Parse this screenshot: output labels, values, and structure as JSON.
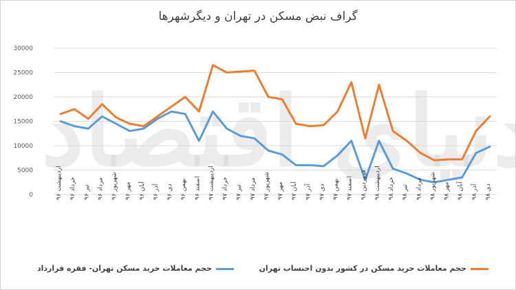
{
  "colors": {
    "orange": "#ED7D31",
    "blue": "#5B9BD5",
    "grid": "#d9d9d9",
    "text": "#595959"
  },
  "chart_data": {
    "type": "line",
    "title": "گراف نبض مسکن در تهران و دیگرشهرها",
    "ylim": [
      0,
      30000
    ],
    "yticks": [
      {
        "value": 0,
        "label": "0"
      },
      {
        "value": 5000,
        "label": "5000"
      },
      {
        "value": 10000,
        "label": "10000"
      },
      {
        "value": 15000,
        "label": "15000"
      },
      {
        "value": 20000,
        "label": "20000"
      },
      {
        "value": 25000,
        "label": "25000"
      },
      {
        "value": 30000,
        "label": "30000"
      }
    ],
    "grid": true,
    "legend_position": "bottom",
    "categories": [
      "اردیبهشت ۹۶",
      "خرداد ۹۶",
      "تیر ۹۶",
      "مرداد ۹۶",
      "شهریور ۹۶",
      "مهر ۹۶",
      "آبان ۹۶",
      "آذر ۹۶",
      "دی ۹۶",
      "بهمن ۹۶",
      "اسفند ۹۶",
      "اردیبهشت ۹۷",
      "خرداد ۹۷",
      "تیر ۹۷",
      "مرداد ۹۷",
      "شهریور ۹۷",
      "مهر ۹۷",
      "آبان ۹۷",
      "آذر ۹۷",
      "دی ۹۷",
      "بهمن ۹۷",
      "اسفند ۹۷",
      "فروردین ۹۸",
      "اردیبهشت ۹۸",
      "خرداد ۹۸",
      "تیر ۹۸",
      "مرداد ۹۸",
      "شهریور ۹۸",
      "مهر ۹۸",
      "آبان ۹۸",
      "آذر ۹۸",
      "دی ۹۸"
    ],
    "series": [
      {
        "name": "حجم معاملات خرید مسکن در کشور بدون احتساب تهران",
        "color": "#ED7D31",
        "values": [
          16500,
          17500,
          15500,
          18500,
          15800,
          14500,
          14000,
          16000,
          18000,
          20000,
          17000,
          26500,
          25000,
          25200,
          25400,
          20000,
          19500,
          14500,
          14000,
          14200,
          17000,
          23000,
          11500,
          22500,
          13000,
          11000,
          8500,
          7000,
          7200,
          7200,
          13000,
          16000
        ]
      },
      {
        "name": "حجم معاملات خرید مسکن تهران- فقره قرارداد",
        "color": "#5B9BD5",
        "values": [
          15000,
          14000,
          13500,
          16000,
          14500,
          13000,
          13500,
          15500,
          17000,
          16500,
          11000,
          17000,
          13500,
          12000,
          11500,
          9000,
          8200,
          6000,
          6000,
          5800,
          8000,
          11000,
          3000,
          11000,
          5300,
          4300,
          3000,
          2500,
          3000,
          3500,
          8500,
          9800
        ]
      }
    ]
  },
  "watermark": "دنیای اقتصاد"
}
